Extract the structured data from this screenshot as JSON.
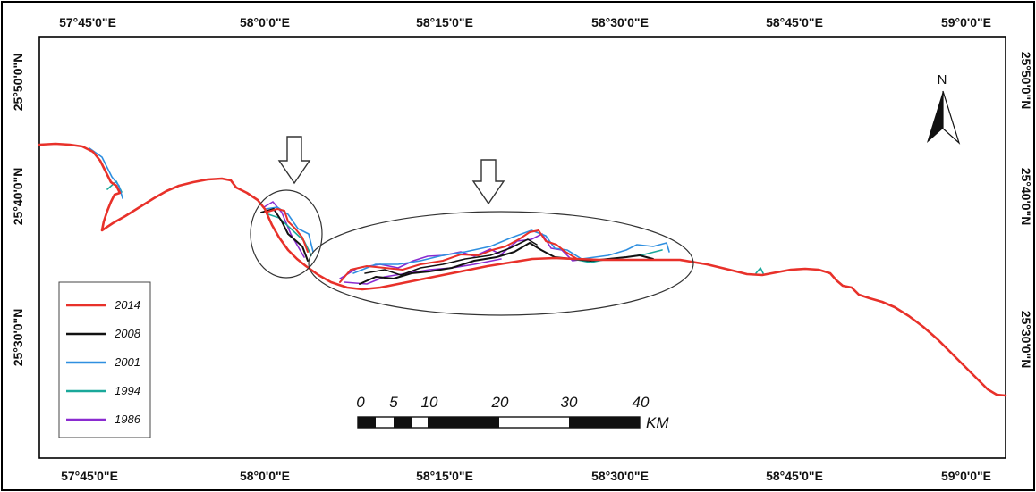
{
  "map": {
    "top_longitudes": [
      "57°45'0\"E",
      "58°0'0\"E",
      "58°15'0\"E",
      "58°30'0\"E",
      "58°45'0\"E",
      "59°0'0\"E"
    ],
    "bottom_longitudes": [
      "57°45'0\"E",
      "58°0'0\"E",
      "58°15'0\"E",
      "58°30'0\"E",
      "58°45'0\"E",
      "59°0'0\"E"
    ],
    "left_latitudes": [
      "25°50'0\"N",
      "25°40'0\"N",
      "25°30'0\"N"
    ],
    "right_latitudes": [
      "25°50'0\"N",
      "25°40'0\"N",
      "25°30'0\"N"
    ],
    "north_label": "N",
    "scale": {
      "labels": [
        "0",
        "5",
        "10",
        "20",
        "30",
        "40"
      ],
      "unit": "KM"
    },
    "legend": [
      {
        "year": "2014",
        "color": "#e8312a"
      },
      {
        "year": "2008",
        "color": "#111111"
      },
      {
        "year": "2001",
        "color": "#2f8fe0"
      },
      {
        "year": "1994",
        "color": "#1aa89a"
      },
      {
        "year": "1986",
        "color": "#8a2bd0"
      }
    ]
  }
}
